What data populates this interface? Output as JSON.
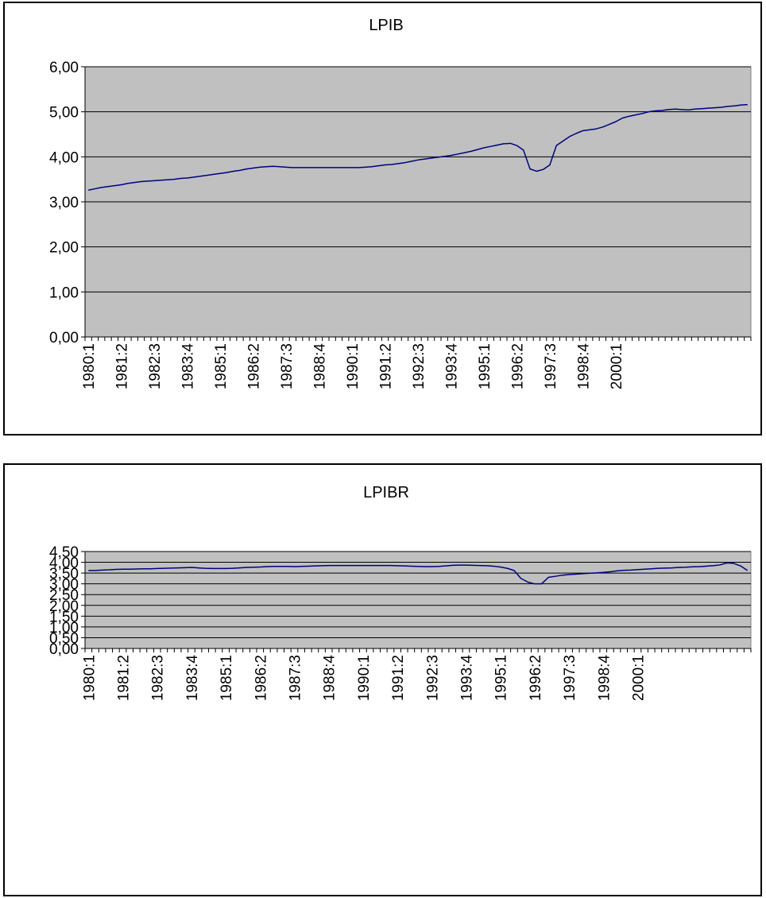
{
  "chart_data": [
    {
      "type": "line",
      "title": "LPIB",
      "xlabel": "",
      "ylabel": "",
      "ylim": [
        0,
        6
      ],
      "ytick_labels": [
        "0,00",
        "1,00",
        "2,00",
        "3,00",
        "4,00",
        "5,00",
        "6,00"
      ],
      "xtick_labels": [
        "1980:1",
        "1981:2",
        "1982:3",
        "1983:4",
        "1985:1",
        "1986:2",
        "1987:3",
        "1988:4",
        "1990:1",
        "1991:2",
        "1992:3",
        "1993:4",
        "1995:1",
        "1996:2",
        "1997:3",
        "1998:4",
        "2000:1"
      ],
      "plot_background": "#c0c0c0",
      "line_color": "#000080",
      "grid": true,
      "legend": "none",
      "series": [
        {
          "values": [
            3.26,
            3.29,
            3.32,
            3.34,
            3.36,
            3.38,
            3.41,
            3.43,
            3.45,
            3.46,
            3.47,
            3.48,
            3.49,
            3.5,
            3.52,
            3.53,
            3.55,
            3.57,
            3.59,
            3.61,
            3.63,
            3.65,
            3.68,
            3.7,
            3.73,
            3.75,
            3.77,
            3.78,
            3.79,
            3.78,
            3.77,
            3.76,
            3.76,
            3.76,
            3.76,
            3.76,
            3.76,
            3.76,
            3.76,
            3.76,
            3.76,
            3.76,
            3.77,
            3.78,
            3.8,
            3.82,
            3.83,
            3.85,
            3.87,
            3.9,
            3.93,
            3.95,
            3.97,
            3.99,
            4.01,
            4.03,
            4.06,
            4.09,
            4.12,
            4.16,
            4.2,
            4.23,
            4.26,
            4.29,
            4.3,
            4.25,
            4.15,
            3.73,
            3.68,
            3.72,
            3.82,
            4.25,
            4.35,
            4.45,
            4.52,
            4.58,
            4.6,
            4.62,
            4.66,
            4.72,
            4.78,
            4.86,
            4.9,
            4.93,
            4.96,
            5.0,
            5.02,
            5.03,
            5.05,
            5.06,
            5.05,
            5.04,
            5.06,
            5.07,
            5.08,
            5.09,
            5.1,
            5.12,
            5.13,
            5.15,
            5.16
          ]
        }
      ]
    },
    {
      "type": "line",
      "title": "LPIBR",
      "xlabel": "",
      "ylabel": "",
      "ylim": [
        0,
        4.5
      ],
      "ytick_labels": [
        "0,00",
        "0,50",
        "1,00",
        "1,50",
        "2,00",
        "2,50",
        "3,00",
        "3,50",
        "4,00",
        "4,50"
      ],
      "xtick_labels": [
        "1980:1",
        "1981:2",
        "1982:3",
        "1983:4",
        "1985:1",
        "1986:2",
        "1987:3",
        "1988:4",
        "1990:1",
        "1991:2",
        "1992:3",
        "1993:4",
        "1995:1",
        "1996:2",
        "1997:3",
        "1998:4",
        "2000:1"
      ],
      "plot_background": "#c0c0c0",
      "line_color": "#000080",
      "grid": true,
      "legend": "none",
      "series": [
        {
          "values": [
            3.62,
            3.62,
            3.64,
            3.65,
            3.67,
            3.68,
            3.68,
            3.69,
            3.7,
            3.7,
            3.71,
            3.72,
            3.73,
            3.74,
            3.75,
            3.76,
            3.74,
            3.72,
            3.71,
            3.71,
            3.71,
            3.72,
            3.74,
            3.76,
            3.77,
            3.78,
            3.8,
            3.81,
            3.81,
            3.81,
            3.8,
            3.81,
            3.82,
            3.83,
            3.84,
            3.85,
            3.85,
            3.85,
            3.85,
            3.85,
            3.85,
            3.85,
            3.85,
            3.85,
            3.85,
            3.84,
            3.83,
            3.82,
            3.81,
            3.8,
            3.8,
            3.81,
            3.83,
            3.86,
            3.87,
            3.87,
            3.86,
            3.85,
            3.84,
            3.82,
            3.78,
            3.72,
            3.62,
            3.25,
            3.08,
            3.0,
            3.0,
            3.3,
            3.35,
            3.4,
            3.43,
            3.45,
            3.47,
            3.49,
            3.51,
            3.53,
            3.56,
            3.6,
            3.63,
            3.64,
            3.66,
            3.68,
            3.7,
            3.72,
            3.73,
            3.74,
            3.76,
            3.77,
            3.79,
            3.8,
            3.82,
            3.84,
            3.88,
            3.97,
            3.95,
            3.83,
            3.62
          ]
        }
      ]
    }
  ]
}
